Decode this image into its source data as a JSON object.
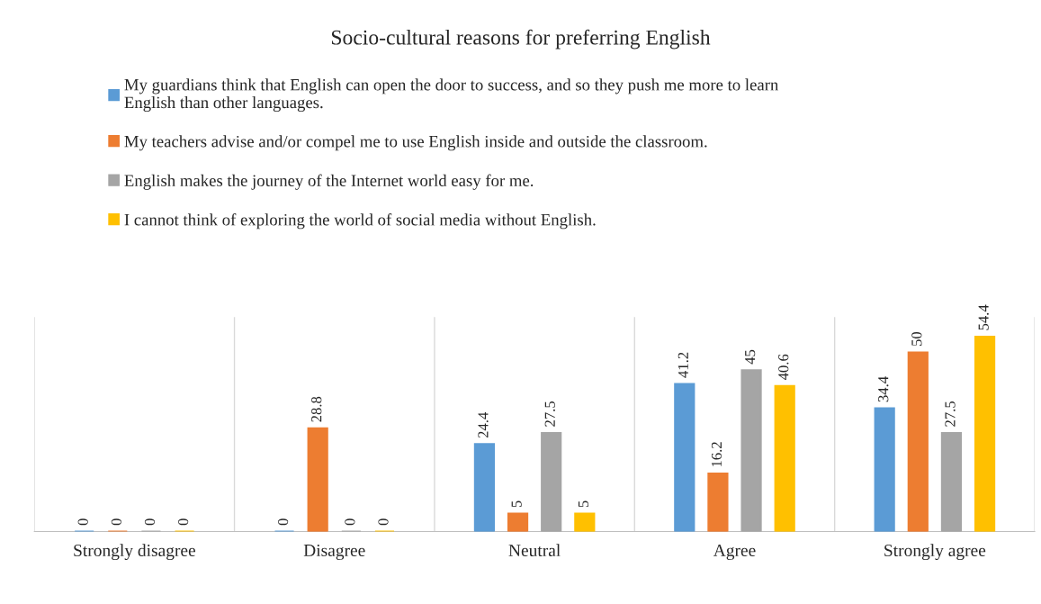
{
  "chart_data": {
    "type": "bar",
    "title": "Socio-cultural reasons for preferring English",
    "categories": [
      "Strongly disagree",
      "Disagree",
      "Neutral",
      "Agree",
      "Strongly agree"
    ],
    "series": [
      {
        "name": "My guardians think that English can open the door to success, and so they push me more to learn English than other languages.",
        "color": "#5b9bd5",
        "values": [
          0,
          0,
          24.4,
          41.2,
          34.4
        ]
      },
      {
        "name": "My teachers advise and/or compel me to use English inside and outside the classroom.",
        "color": "#ed7d31",
        "values": [
          0,
          28.8,
          5,
          16.2,
          50
        ]
      },
      {
        "name": "English makes the journey of the Internet world easy for me.",
        "color": "#a5a5a5",
        "values": [
          0,
          0,
          27.5,
          45,
          27.5
        ]
      },
      {
        "name": "I cannot think of exploring the world of social media without English.",
        "color": "#ffc000",
        "values": [
          0,
          0,
          5,
          40.6,
          54.4
        ]
      }
    ],
    "data_labels": true,
    "grid": "x",
    "legend": "top"
  }
}
